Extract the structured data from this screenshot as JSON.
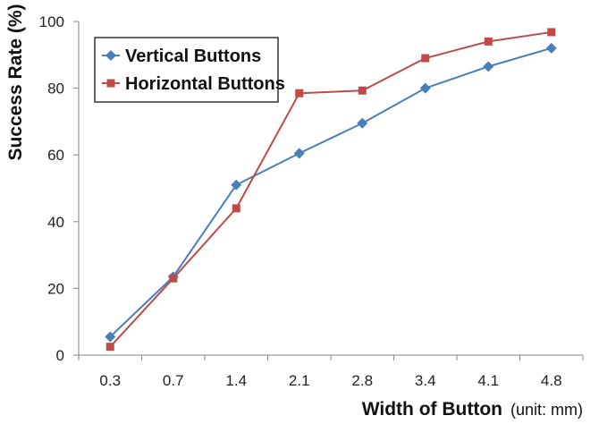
{
  "chart_data": {
    "type": "line",
    "categories": [
      "0.3",
      "0.7",
      "1.4",
      "2.1",
      "2.8",
      "3.4",
      "4.1",
      "4.8"
    ],
    "series": [
      {
        "name": "Vertical Buttons",
        "color": "#4a7ebb",
        "marker": "diamond",
        "values": [
          5.5,
          23.5,
          51,
          60.5,
          69.5,
          80,
          86.5,
          92
        ]
      },
      {
        "name": "Horizontal Buttons",
        "color": "#be4b48",
        "marker": "square",
        "values": [
          2.5,
          23,
          44,
          78.5,
          79.3,
          89,
          94,
          96.8
        ]
      }
    ],
    "y_ticks": [
      "0",
      "20",
      "40",
      "60",
      "80",
      "100"
    ],
    "ylim": [
      0,
      100
    ],
    "ylabel": "Success Rate (%)",
    "xlabel": "Width of Button",
    "xlabel_unit": "(unit: mm)",
    "legend_position": "top-left",
    "grid": false
  }
}
